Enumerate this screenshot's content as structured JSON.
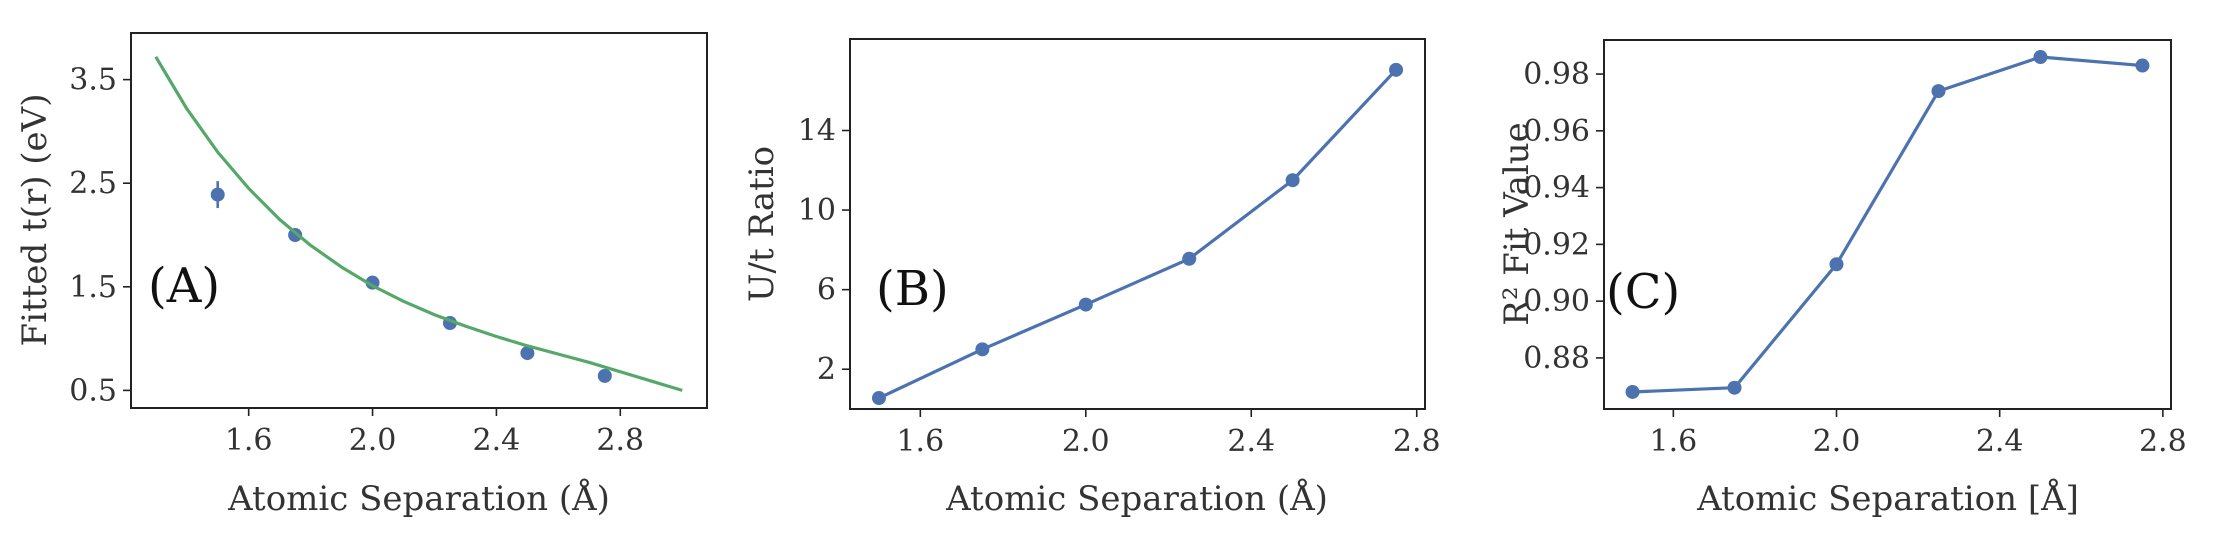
{
  "chart_data": [
    {
      "type": "scatter",
      "panel_label": "(A)",
      "xlabel": "Atomic Separation (Å)",
      "ylabel": "Fitted t(r) (eV)",
      "xlim": [
        1.22,
        3.08
      ],
      "ylim": [
        0.33,
        3.95
      ],
      "xticks": [
        1.6,
        2.0,
        2.4,
        2.8
      ],
      "yticks": [
        0.5,
        1.5,
        2.5,
        3.5
      ],
      "xtick_labels": [
        "1.6",
        "2.0",
        "2.4",
        "2.8"
      ],
      "ytick_labels": [
        "0.5",
        "1.5",
        "2.5",
        "3.5"
      ],
      "grid": false,
      "series": [
        {
          "kind": "points",
          "x": [
            1.5,
            1.75,
            2.0,
            2.25,
            2.5,
            2.75
          ],
          "y": [
            2.39,
            2.0,
            1.54,
            1.15,
            0.86,
            0.64
          ],
          "yerr": [
            0.13,
            0.03,
            0.02,
            0.02,
            0.02,
            0.02
          ],
          "color": "#4c72b0"
        },
        {
          "kind": "fit",
          "x": [
            1.3,
            1.4,
            1.5,
            1.6,
            1.7,
            1.8,
            1.9,
            2.0,
            2.1,
            2.2,
            2.3,
            2.4,
            2.5,
            2.6,
            2.7,
            2.8,
            2.9,
            3.0
          ],
          "y": [
            3.72,
            3.22,
            2.8,
            2.45,
            2.15,
            1.9,
            1.69,
            1.51,
            1.36,
            1.23,
            1.12,
            1.02,
            0.93,
            0.85,
            0.77,
            0.68,
            0.59,
            0.5
          ],
          "color": "#55a868"
        }
      ]
    },
    {
      "type": "line",
      "panel_label": "(B)",
      "xlabel": "Atomic Separation (Å)",
      "ylabel": "U/t Ratio",
      "xlim": [
        1.43,
        2.82
      ],
      "ylim": [
        0.0,
        18.6
      ],
      "xticks": [
        1.6,
        2.0,
        2.4,
        2.8
      ],
      "yticks": [
        2,
        6,
        10,
        14
      ],
      "xtick_labels": [
        "1.6",
        "2.0",
        "2.4",
        "2.8"
      ],
      "ytick_labels": [
        "2",
        "6",
        "10",
        "14"
      ],
      "grid": false,
      "series": [
        {
          "x": [
            1.5,
            1.75,
            2.0,
            2.25,
            2.5,
            2.75
          ],
          "y": [
            0.55,
            3.0,
            5.25,
            7.55,
            11.5,
            17.05
          ],
          "color": "#4c72b0"
        }
      ]
    },
    {
      "type": "line",
      "panel_label": "(C)",
      "xlabel": "Atomic Separation [Å]",
      "ylabel": "R² Fit Value",
      "xlim": [
        1.43,
        2.82
      ],
      "ylim": [
        0.862,
        0.992
      ],
      "xticks": [
        1.6,
        2.0,
        2.4,
        2.8
      ],
      "yticks": [
        0.88,
        0.9,
        0.92,
        0.94,
        0.96,
        0.98
      ],
      "xtick_labels": [
        "1.6",
        "2.0",
        "2.4",
        "2.8"
      ],
      "ytick_labels": [
        "0.88",
        "0.90",
        "0.92",
        "0.94",
        "0.96",
        "0.98"
      ],
      "grid": false,
      "series": [
        {
          "x": [
            1.5,
            1.75,
            2.0,
            2.25,
            2.5,
            2.75
          ],
          "y": [
            0.868,
            0.8695,
            0.913,
            0.974,
            0.986,
            0.983
          ],
          "color": "#4c72b0"
        }
      ]
    }
  ]
}
